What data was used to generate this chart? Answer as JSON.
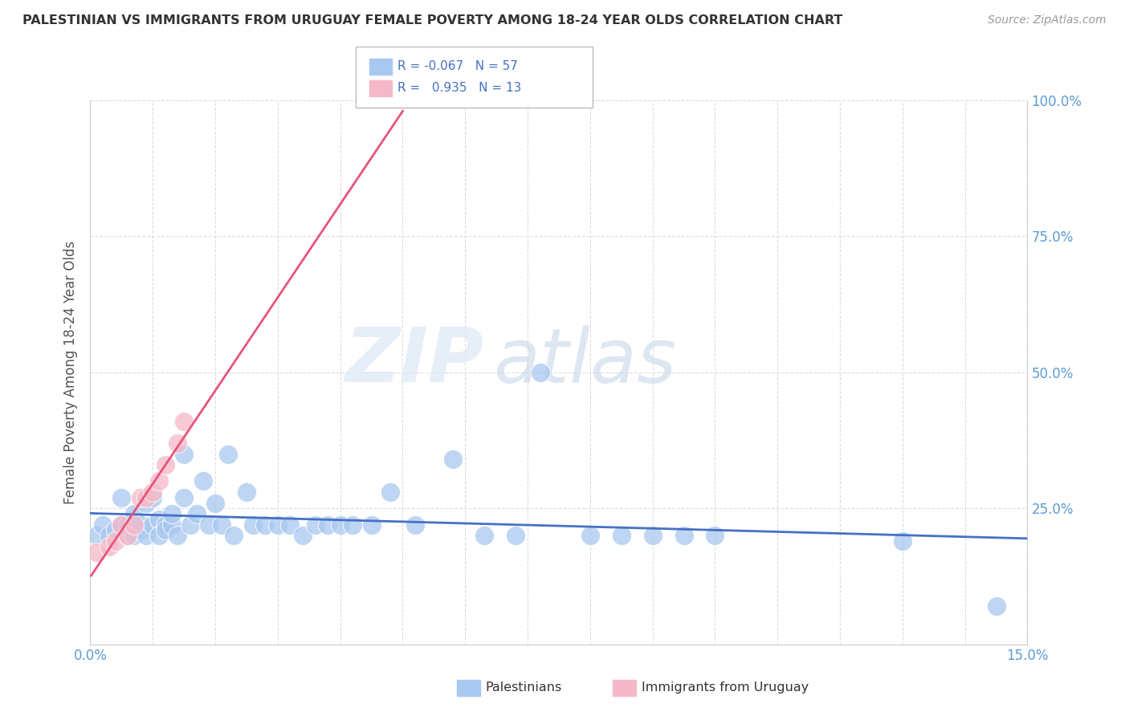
{
  "title": "PALESTINIAN VS IMMIGRANTS FROM URUGUAY FEMALE POVERTY AMONG 18-24 YEAR OLDS CORRELATION CHART",
  "source": "Source: ZipAtlas.com",
  "ylabel": "Female Poverty Among 18-24 Year Olds",
  "xlim": [
    0.0,
    0.15
  ],
  "ylim": [
    0.0,
    1.0
  ],
  "legend_r_pal": "-0.067",
  "legend_n_pal": "57",
  "legend_r_uru": "0.935",
  "legend_n_uru": "13",
  "color_pal": "#a8c8f0",
  "color_uru": "#f5b8c8",
  "line_color_pal": "#4472c4",
  "line_color_uru": "#e8547a",
  "watermark_zip": "ZIP",
  "watermark_atlas": "atlas",
  "palestinians_x": [
    0.001,
    0.002,
    0.003,
    0.004,
    0.005,
    0.005,
    0.006,
    0.006,
    0.007,
    0.007,
    0.008,
    0.008,
    0.009,
    0.009,
    0.01,
    0.01,
    0.011,
    0.011,
    0.012,
    0.012,
    0.013,
    0.013,
    0.014,
    0.015,
    0.015,
    0.016,
    0.017,
    0.018,
    0.019,
    0.02,
    0.021,
    0.022,
    0.023,
    0.025,
    0.026,
    0.028,
    0.03,
    0.032,
    0.034,
    0.036,
    0.038,
    0.04,
    0.042,
    0.045,
    0.048,
    0.052,
    0.058,
    0.063,
    0.068,
    0.072,
    0.08,
    0.085,
    0.09,
    0.095,
    0.1,
    0.13,
    0.145
  ],
  "palestinians_y": [
    0.2,
    0.22,
    0.2,
    0.21,
    0.22,
    0.27,
    0.2,
    0.22,
    0.2,
    0.24,
    0.21,
    0.22,
    0.26,
    0.2,
    0.22,
    0.27,
    0.23,
    0.2,
    0.22,
    0.21,
    0.22,
    0.24,
    0.2,
    0.27,
    0.35,
    0.22,
    0.24,
    0.3,
    0.22,
    0.26,
    0.22,
    0.35,
    0.2,
    0.28,
    0.22,
    0.22,
    0.22,
    0.22,
    0.2,
    0.22,
    0.22,
    0.22,
    0.22,
    0.22,
    0.28,
    0.22,
    0.34,
    0.2,
    0.2,
    0.5,
    0.2,
    0.2,
    0.2,
    0.2,
    0.2,
    0.19,
    0.07
  ],
  "uruguayans_x": [
    0.001,
    0.003,
    0.004,
    0.005,
    0.006,
    0.007,
    0.008,
    0.009,
    0.01,
    0.011,
    0.012,
    0.014,
    0.015
  ],
  "uruguayans_y": [
    0.17,
    0.18,
    0.19,
    0.22,
    0.2,
    0.22,
    0.27,
    0.27,
    0.28,
    0.3,
    0.33,
    0.37,
    0.41
  ]
}
